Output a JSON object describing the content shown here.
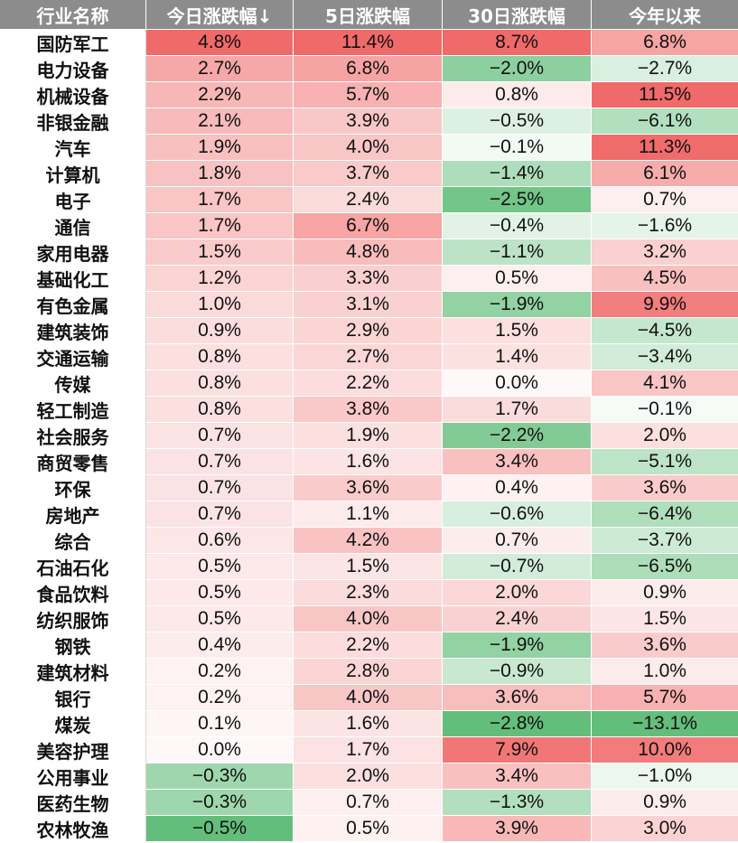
{
  "headers": [
    "行业名称",
    "今日涨跌幅↓",
    "5日涨跌幅",
    "30日涨跌幅",
    "今年以来"
  ],
  "colors": {
    "header_bg": "#8c8c8c",
    "positive_max": "#f06a6a",
    "negative_max": "#63be7b",
    "neutral": "#ffffff"
  },
  "rows": [
    {
      "name": "国防军工",
      "today": "4.8%",
      "d5": "11.4%",
      "d30": "8.7%",
      "ytd": "6.8%"
    },
    {
      "name": "电力设备",
      "today": "2.7%",
      "d5": "6.8%",
      "d30": "−2.0%",
      "ytd": "−2.7%"
    },
    {
      "name": "机械设备",
      "today": "2.2%",
      "d5": "5.7%",
      "d30": "0.8%",
      "ytd": "11.5%"
    },
    {
      "name": "非银金融",
      "today": "2.1%",
      "d5": "3.9%",
      "d30": "−0.5%",
      "ytd": "−6.1%"
    },
    {
      "name": "汽车",
      "today": "1.9%",
      "d5": "4.0%",
      "d30": "−0.1%",
      "ytd": "11.3%"
    },
    {
      "name": "计算机",
      "today": "1.8%",
      "d5": "3.7%",
      "d30": "−1.4%",
      "ytd": "6.1%"
    },
    {
      "name": "电子",
      "today": "1.7%",
      "d5": "2.4%",
      "d30": "−2.5%",
      "ytd": "0.7%"
    },
    {
      "name": "通信",
      "today": "1.7%",
      "d5": "6.7%",
      "d30": "−0.4%",
      "ytd": "−1.6%"
    },
    {
      "name": "家用电器",
      "today": "1.5%",
      "d5": "4.8%",
      "d30": "−1.1%",
      "ytd": "3.2%"
    },
    {
      "name": "基础化工",
      "today": "1.2%",
      "d5": "3.3%",
      "d30": "0.5%",
      "ytd": "4.5%"
    },
    {
      "name": "有色金属",
      "today": "1.0%",
      "d5": "3.1%",
      "d30": "−1.9%",
      "ytd": "9.9%"
    },
    {
      "name": "建筑装饰",
      "today": "0.9%",
      "d5": "2.9%",
      "d30": "1.5%",
      "ytd": "−4.5%"
    },
    {
      "name": "交通运输",
      "today": "0.8%",
      "d5": "2.7%",
      "d30": "1.4%",
      "ytd": "−3.4%"
    },
    {
      "name": "传媒",
      "today": "0.8%",
      "d5": "2.2%",
      "d30": "0.0%",
      "ytd": "4.1%"
    },
    {
      "name": "轻工制造",
      "today": "0.8%",
      "d5": "3.8%",
      "d30": "1.7%",
      "ytd": "−0.1%"
    },
    {
      "name": "社会服务",
      "today": "0.7%",
      "d5": "1.9%",
      "d30": "−2.2%",
      "ytd": "2.0%"
    },
    {
      "name": "商贸零售",
      "today": "0.7%",
      "d5": "1.6%",
      "d30": "3.4%",
      "ytd": "−5.1%"
    },
    {
      "name": "环保",
      "today": "0.7%",
      "d5": "3.6%",
      "d30": "0.4%",
      "ytd": "3.6%"
    },
    {
      "name": "房地产",
      "today": "0.7%",
      "d5": "1.1%",
      "d30": "−0.6%",
      "ytd": "−6.4%"
    },
    {
      "name": "综合",
      "today": "0.6%",
      "d5": "4.2%",
      "d30": "0.7%",
      "ytd": "−3.7%"
    },
    {
      "name": "石油石化",
      "today": "0.5%",
      "d5": "1.5%",
      "d30": "−0.7%",
      "ytd": "−6.5%"
    },
    {
      "name": "食品饮料",
      "today": "0.5%",
      "d5": "2.3%",
      "d30": "2.0%",
      "ytd": "0.9%"
    },
    {
      "name": "纺织服饰",
      "today": "0.5%",
      "d5": "4.0%",
      "d30": "2.4%",
      "ytd": "1.5%"
    },
    {
      "name": "钢铁",
      "today": "0.4%",
      "d5": "2.2%",
      "d30": "−1.9%",
      "ytd": "3.6%"
    },
    {
      "name": "建筑材料",
      "today": "0.2%",
      "d5": "2.8%",
      "d30": "−0.9%",
      "ytd": "1.0%"
    },
    {
      "name": "银行",
      "today": "0.2%",
      "d5": "4.0%",
      "d30": "3.6%",
      "ytd": "5.7%"
    },
    {
      "name": "煤炭",
      "today": "0.1%",
      "d5": "1.6%",
      "d30": "−2.8%",
      "ytd": "−13.1%"
    },
    {
      "name": "美容护理",
      "today": "0.0%",
      "d5": "1.7%",
      "d30": "7.9%",
      "ytd": "10.0%"
    },
    {
      "name": "公用事业",
      "today": "−0.3%",
      "d5": "2.0%",
      "d30": "3.4%",
      "ytd": "−1.0%"
    },
    {
      "name": "医药生物",
      "today": "−0.3%",
      "d5": "0.7%",
      "d30": "−1.3%",
      "ytd": "0.9%"
    },
    {
      "name": "农林牧渔",
      "today": "−0.5%",
      "d5": "0.5%",
      "d30": "3.9%",
      "ytd": "3.0%"
    }
  ]
}
